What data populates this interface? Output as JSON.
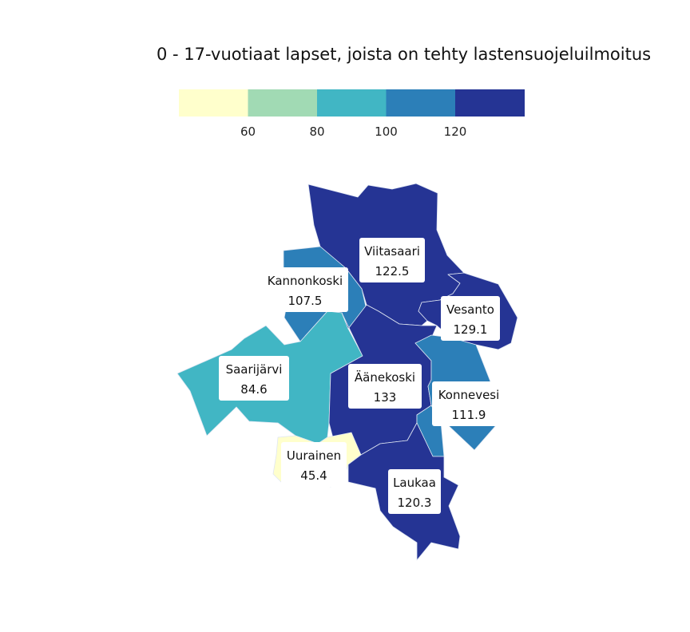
{
  "title": "0 - 17-vuotiaat lapset, joista on tehty lastensuojeluilmoitus",
  "legend": {
    "bins": [
      {
        "color": "#ffffcc"
      },
      {
        "color": "#a1dab4"
      },
      {
        "color": "#41b6c4"
      },
      {
        "color": "#2c7fb8"
      },
      {
        "color": "#253494"
      }
    ],
    "breaks": [
      "60",
      "80",
      "100",
      "120"
    ]
  },
  "regions": [
    {
      "name": "Viitasaari",
      "value": "122.5",
      "color": "#253494"
    },
    {
      "name": "Kannonkoski",
      "value": "107.5",
      "color": "#2c7fb8"
    },
    {
      "name": "Vesanto",
      "value": "129.1",
      "color": "#253494"
    },
    {
      "name": "Saarijärvi",
      "value": "84.6",
      "color": "#41b6c4"
    },
    {
      "name": "Äänekoski",
      "value": "133",
      "color": "#253494"
    },
    {
      "name": "Konnevesi",
      "value": "111.9",
      "color": "#2c7fb8"
    },
    {
      "name": "Uurainen",
      "value": "45.4",
      "color": "#ffffcc"
    },
    {
      "name": "Laukaa",
      "value": "120.3",
      "color": "#253494"
    }
  ]
}
